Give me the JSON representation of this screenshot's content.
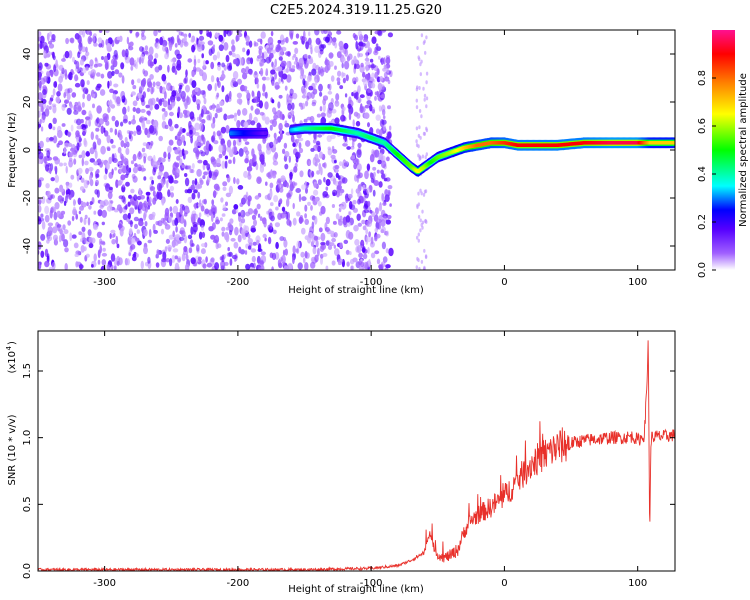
{
  "figure": {
    "title": "C2E5.2024.319.11.25.G20"
  },
  "chart_data": [
    {
      "type": "heatmap",
      "xlabel": "Height of straight line (km)",
      "ylabel": "Frequency (Hz)",
      "xlim": [
        -350,
        128
      ],
      "ylim": [
        -50,
        50
      ],
      "xticks": [
        -300,
        -200,
        -100,
        0,
        100
      ],
      "yticks": [
        -40,
        -20,
        0,
        20,
        40
      ],
      "colorbar": {
        "label": "Normalized spectral amplitude",
        "ticks": [
          0.0,
          0.2,
          0.4,
          0.6,
          0.8
        ],
        "tick_labels": [
          "0.0",
          "0.2",
          "0.4",
          "0.6",
          "0.8"
        ],
        "range": [
          0,
          1
        ],
        "colormap": [
          "#ffffff",
          "#5500ff",
          "#0000ff",
          "#00ffff",
          "#00ff00",
          "#ffff00",
          "#ff8000",
          "#ff0000",
          "#ff00aa"
        ]
      },
      "noise_region_x": [
        -350,
        -85
      ],
      "ridge": {
        "x": [
          -205,
          -195,
          -180,
          -150,
          -130,
          -110,
          -100,
          -90,
          -80,
          -70,
          -65,
          -60,
          -55,
          -50,
          -40,
          -30,
          -20,
          -10,
          0,
          10,
          20,
          40,
          60,
          80,
          100,
          110,
          128
        ],
        "frequency": [
          7,
          7,
          7,
          9,
          9,
          7,
          5,
          3,
          -2,
          -7,
          -9,
          -7,
          -5,
          -3,
          -1,
          1,
          2,
          3,
          3,
          2,
          2,
          2,
          3,
          3,
          3,
          3,
          3
        ],
        "amplitude": [
          0.3,
          0.25,
          0.15,
          0.4,
          0.5,
          0.4,
          0.45,
          0.4,
          0.5,
          0.55,
          0.65,
          0.6,
          0.5,
          0.55,
          0.6,
          0.7,
          0.8,
          0.8,
          0.85,
          0.9,
          0.9,
          0.9,
          0.9,
          0.95,
          0.95,
          0.7,
          0.7
        ]
      },
      "grid": false
    },
    {
      "type": "line",
      "xlabel": "Height of straight line (km)",
      "ylabel": "SNR (10 * v/v)",
      "exponent_label": "(x10",
      "exponent_power": "4",
      "xlim": [
        -350,
        128
      ],
      "ylim": [
        0,
        1.8
      ],
      "xticks": [
        -300,
        -200,
        -100,
        0,
        100
      ],
      "yticks": [
        0.0,
        0.5,
        1.0,
        1.5
      ],
      "ytick_labels": [
        "0.0",
        "0.5",
        "1.0",
        "1.5"
      ],
      "color": "#e8302a",
      "series": [
        {
          "x": [
            -350,
            -150,
            -100,
            -80,
            -70,
            -60,
            -56,
            -54,
            -50,
            -45,
            -40,
            -35,
            -30,
            -25,
            -20,
            -15,
            -10,
            -5,
            0,
            5,
            10,
            15,
            20,
            25,
            30,
            35,
            40,
            50,
            60,
            70,
            80,
            90,
            95,
            98,
            100,
            103,
            105,
            107,
            108,
            109,
            110,
            115,
            120,
            128
          ],
          "y": [
            0.01,
            0.01,
            0.02,
            0.04,
            0.08,
            0.14,
            0.3,
            0.2,
            0.12,
            0.1,
            0.12,
            0.16,
            0.3,
            0.38,
            0.42,
            0.45,
            0.48,
            0.52,
            0.56,
            0.62,
            0.68,
            0.74,
            0.8,
            0.84,
            0.87,
            0.9,
            0.93,
            0.96,
            0.98,
            0.99,
            1.0,
            1.0,
            1.01,
            1.0,
            0.98,
            1.0,
            1.02,
            1.4,
            1.78,
            0.22,
            1.0,
            1.01,
            1.01,
            1.02
          ]
        }
      ],
      "grid": false
    }
  ]
}
